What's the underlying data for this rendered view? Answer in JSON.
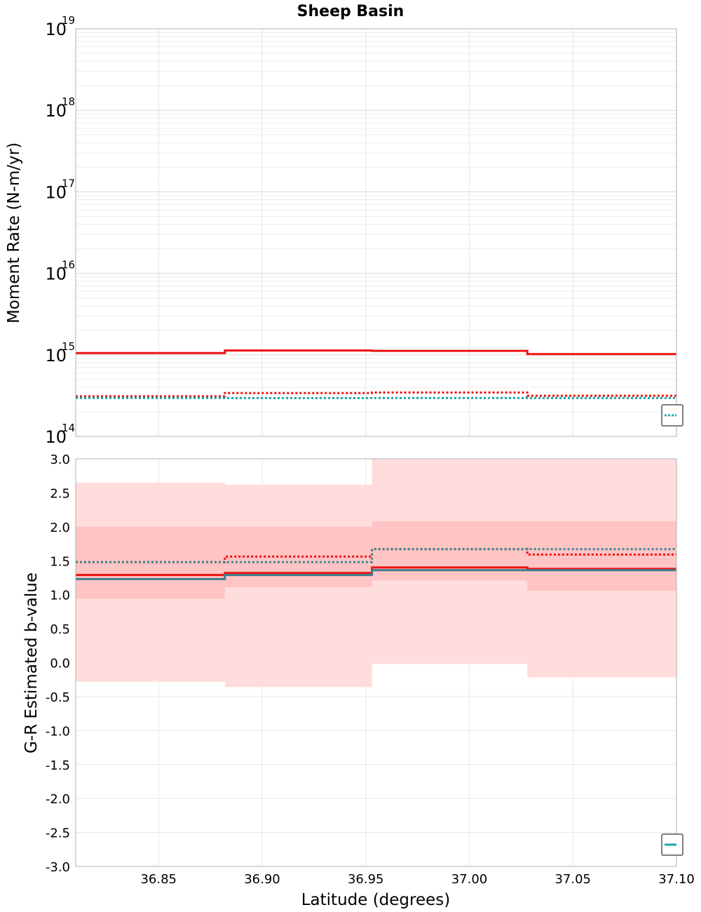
{
  "chart_data": [
    {
      "type": "line",
      "panel": "top",
      "title": "Sheep Basin",
      "xlabel": "",
      "ylabel": "Moment Rate (N-m/yr)",
      "yscale": "log",
      "ylim_exponents": [
        14,
        19
      ],
      "ytick_base": "10",
      "ytick_exponents": [
        "14",
        "15",
        "16",
        "17",
        "18",
        "19"
      ],
      "xlim": [
        36.81,
        37.1
      ],
      "x_edges": [
        36.81,
        36.882,
        36.953,
        37.028,
        37.1
      ],
      "series": [
        {
          "name": "moment-rate",
          "style": "solid",
          "color": "#ee1111",
          "values": [
            1050000000000000.0,
            1130000000000000.0,
            1120000000000000.0,
            1020000000000000.0
          ]
        },
        {
          "name": "moment-rate-dotted",
          "style": "dotted",
          "color": "#ee1111",
          "values": [
            310000000000000.0,
            340000000000000.0,
            345000000000000.0,
            315000000000000.0
          ]
        },
        {
          "name": "moment-rate-teal-dotted",
          "style": "dotted",
          "color": "#17a8a8",
          "values": [
            295000000000000.0,
            295000000000000.0,
            295000000000000.0,
            295000000000000.0
          ]
        }
      ],
      "legend": {
        "location": "lower-right",
        "color": "#17a8a8",
        "style": "dotted"
      }
    },
    {
      "type": "line",
      "panel": "bottom",
      "title": "",
      "xlabel": "Latitude (degrees)",
      "ylabel": "G-R Estimated b-value",
      "ylim": [
        -3.0,
        3.0
      ],
      "yticks": [
        "-3.0",
        "-2.5",
        "-2.0",
        "-1.5",
        "-1.0",
        "-0.5",
        "0.0",
        "0.5",
        "1.0",
        "1.5",
        "2.0",
        "2.5",
        "3.0"
      ],
      "xlim": [
        36.81,
        37.1
      ],
      "xticks": [
        "36.85",
        "36.90",
        "36.95",
        "37.00",
        "37.05",
        "37.10"
      ],
      "x_edges": [
        36.81,
        36.882,
        36.953,
        37.028,
        37.1
      ],
      "bands": [
        {
          "name": "outer-range",
          "color": "#ffdddd",
          "lower": [
            -0.28,
            -0.36,
            -0.02,
            -0.22
          ],
          "upper": [
            2.65,
            2.62,
            3.0,
            3.0
          ]
        },
        {
          "name": "inner-range",
          "color": "#ffc4c4",
          "lower": [
            0.94,
            1.11,
            1.21,
            1.06
          ],
          "upper": [
            2.0,
            2.0,
            2.08,
            2.08
          ]
        }
      ],
      "series": [
        {
          "name": "b-value",
          "style": "solid",
          "color": "#ee1111",
          "values": [
            1.29,
            1.32,
            1.4,
            1.38
          ]
        },
        {
          "name": "b-value-dotted",
          "style": "dotted",
          "color": "#ee1111",
          "values": [
            1.48,
            1.56,
            1.67,
            1.59
          ]
        },
        {
          "name": "b-value-steel",
          "style": "solid",
          "color": "#3a7d8c",
          "values": [
            1.23,
            1.29,
            1.36,
            1.36
          ]
        },
        {
          "name": "b-value-steel-dotted",
          "style": "dotted",
          "color": "#3a8a95",
          "values": [
            1.48,
            1.48,
            1.67,
            1.67
          ]
        }
      ],
      "legend": {
        "location": "lower-right",
        "color": "#17a8a8",
        "style": "solid"
      }
    }
  ]
}
